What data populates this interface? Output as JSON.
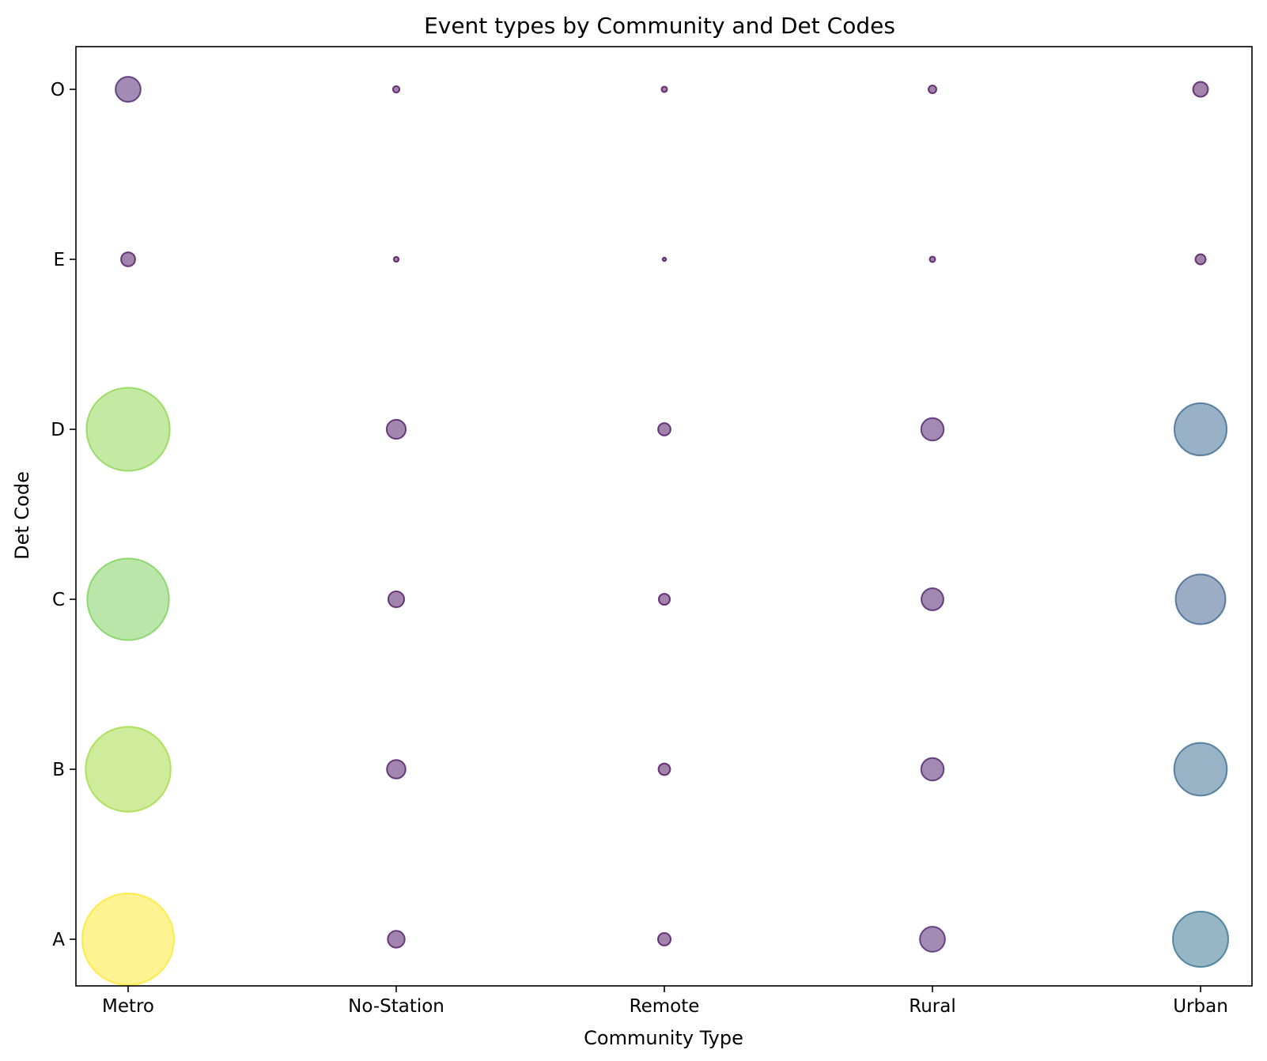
{
  "chart_data": {
    "type": "scatter",
    "title": "Event types by Community and Det Codes",
    "xlabel": "Community Type",
    "ylabel": "Det Code",
    "x_categories": [
      "Metro",
      "No-Station",
      "Remote",
      "Rural",
      "Urban"
    ],
    "y_categories": [
      "A",
      "B",
      "C",
      "D",
      "E",
      "O"
    ],
    "size_color_scale": "viridis",
    "grid": false,
    "legend": "none",
    "points": [
      {
        "x": "Metro",
        "y": "A",
        "value": 13500
      },
      {
        "x": "Metro",
        "y": "B",
        "value": 11600
      },
      {
        "x": "Metro",
        "y": "C",
        "value": 10700
      },
      {
        "x": "Metro",
        "y": "D",
        "value": 11100
      },
      {
        "x": "Metro",
        "y": "E",
        "value": 320
      },
      {
        "x": "Metro",
        "y": "O",
        "value": 1010
      },
      {
        "x": "No-Station",
        "y": "A",
        "value": 460
      },
      {
        "x": "No-Station",
        "y": "B",
        "value": 560
      },
      {
        "x": "No-Station",
        "y": "C",
        "value": 410
      },
      {
        "x": "No-Station",
        "y": "D",
        "value": 590
      },
      {
        "x": "No-Station",
        "y": "E",
        "value": 40
      },
      {
        "x": "No-Station",
        "y": "O",
        "value": 70
      },
      {
        "x": "Remote",
        "y": "A",
        "value": 260
      },
      {
        "x": "Remote",
        "y": "B",
        "value": 220
      },
      {
        "x": "Remote",
        "y": "C",
        "value": 200
      },
      {
        "x": "Remote",
        "y": "D",
        "value": 250
      },
      {
        "x": "Remote",
        "y": "E",
        "value": 20
      },
      {
        "x": "Remote",
        "y": "O",
        "value": 50
      },
      {
        "x": "Rural",
        "y": "A",
        "value": 1010
      },
      {
        "x": "Rural",
        "y": "B",
        "value": 820
      },
      {
        "x": "Rural",
        "y": "C",
        "value": 780
      },
      {
        "x": "Rural",
        "y": "D",
        "value": 820
      },
      {
        "x": "Rural",
        "y": "E",
        "value": 50
      },
      {
        "x": "Rural",
        "y": "O",
        "value": 100
      },
      {
        "x": "Urban",
        "y": "A",
        "value": 4910
      },
      {
        "x": "Urban",
        "y": "B",
        "value": 4460
      },
      {
        "x": "Urban",
        "y": "C",
        "value": 3970
      },
      {
        "x": "Urban",
        "y": "D",
        "value": 4380
      },
      {
        "x": "Urban",
        "y": "E",
        "value": 170
      },
      {
        "x": "Urban",
        "y": "O",
        "value": 360
      }
    ]
  }
}
